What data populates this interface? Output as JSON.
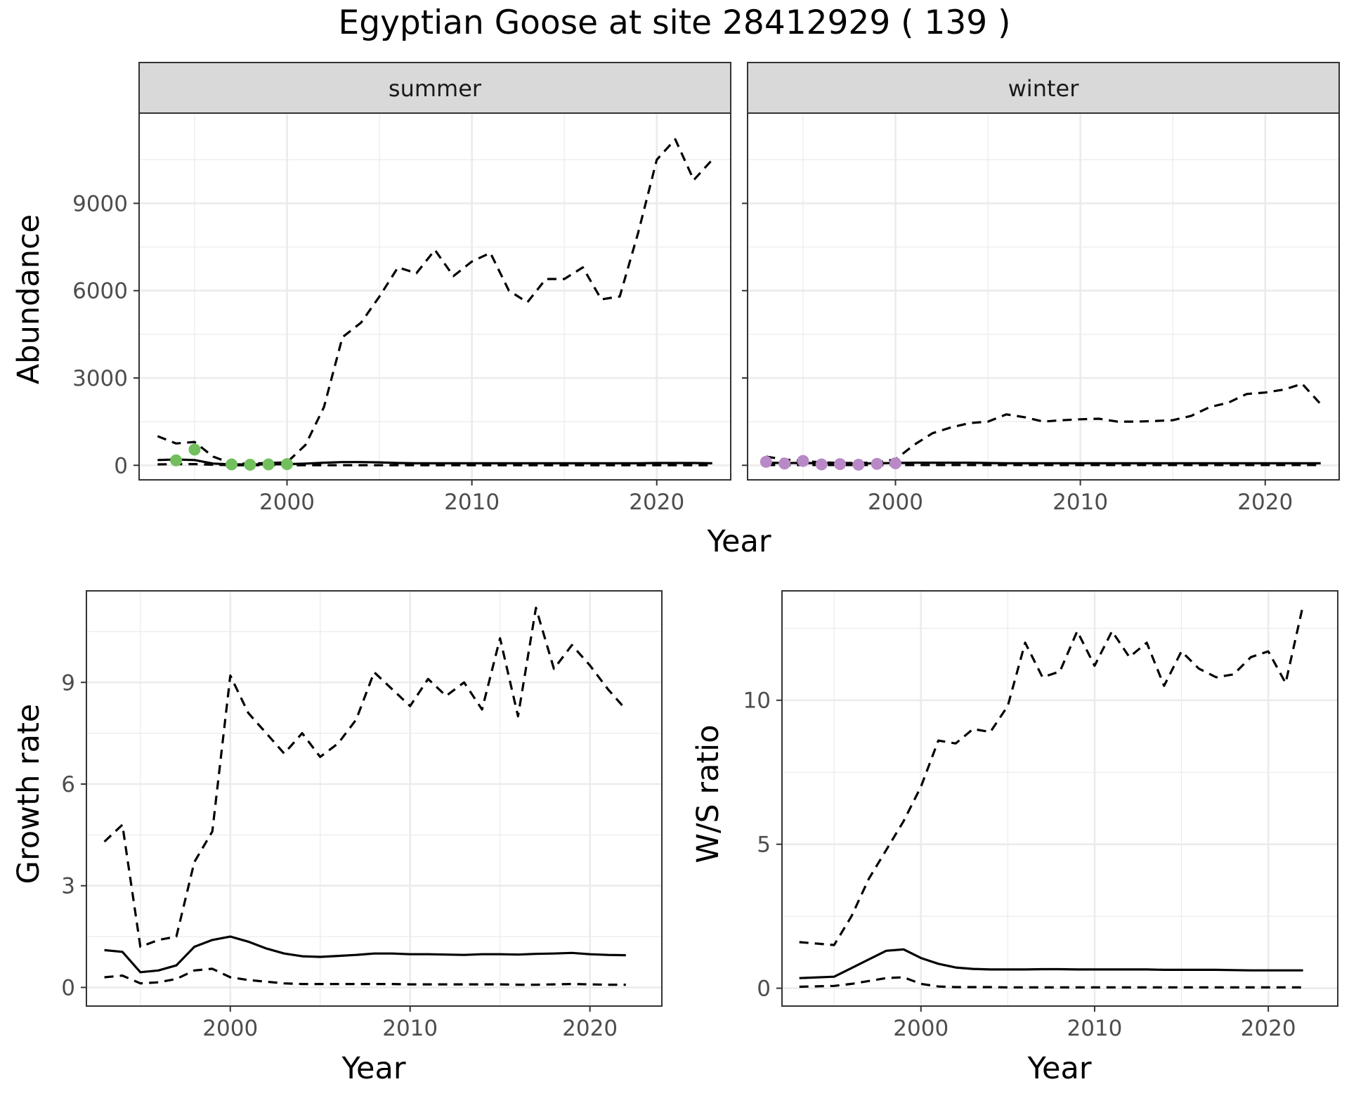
{
  "title": "Egyptian Goose at site 28412929 ( 139 )",
  "colors": {
    "summer_points": "#72bf5d",
    "winter_points": "#b889c6",
    "line": "#000000",
    "strip_bg": "#d9d9d9",
    "grid": "#ebebeb"
  },
  "chart_data": [
    {
      "type": "line",
      "name": "abundance-summer",
      "strip": "summer",
      "xlabel": "Year",
      "ylabel": "Abundance",
      "xlim": [
        1992,
        2024
      ],
      "ylim": [
        -500,
        12100
      ],
      "x_ticks": [
        2000,
        2010,
        2020
      ],
      "y_ticks": [
        0,
        3000,
        6000,
        9000
      ],
      "series": [
        {
          "name": "estimate",
          "style": "solid",
          "x": [
            1993,
            1994,
            1995,
            1996,
            1997,
            1998,
            1999,
            2000,
            2001,
            2002,
            2003,
            2004,
            2005,
            2006,
            2007,
            2008,
            2009,
            2010,
            2011,
            2012,
            2013,
            2014,
            2015,
            2016,
            2017,
            2018,
            2019,
            2020,
            2021,
            2022,
            2023
          ],
          "y": [
            180,
            200,
            180,
            60,
            30,
            30,
            30,
            40,
            60,
            90,
            110,
            110,
            100,
            80,
            70,
            70,
            70,
            70,
            70,
            70,
            70,
            70,
            70,
            70,
            70,
            70,
            70,
            80,
            80,
            80,
            70
          ]
        },
        {
          "name": "upper",
          "style": "dashed",
          "x": [
            1993,
            1994,
            1995,
            1996,
            1997,
            1998,
            1999,
            2000,
            2001,
            2002,
            2003,
            2004,
            2005,
            2006,
            2007,
            2008,
            2009,
            2010,
            2011,
            2012,
            2013,
            2014,
            2015,
            2016,
            2017,
            2018,
            2019,
            2020,
            2021,
            2022,
            2023
          ],
          "y": [
            1000,
            750,
            800,
            300,
            60,
            60,
            80,
            100,
            700,
            2000,
            4400,
            4900,
            5800,
            6800,
            6600,
            7400,
            6500,
            7000,
            7300,
            6000,
            5600,
            6400,
            6400,
            6800,
            5700,
            5800,
            8000,
            10500,
            11200,
            9800,
            10500
          ]
        },
        {
          "name": "lower",
          "style": "dashed",
          "x": [
            1993,
            1994,
            1995,
            1996,
            1997,
            1998,
            1999,
            2000,
            2001,
            2002,
            2003,
            2004,
            2005,
            2006,
            2007,
            2008,
            2009,
            2010,
            2011,
            2012,
            2013,
            2014,
            2015,
            2016,
            2017,
            2018,
            2019,
            2020,
            2021,
            2022,
            2023
          ],
          "y": [
            30,
            40,
            40,
            20,
            5,
            5,
            5,
            5,
            5,
            5,
            5,
            5,
            5,
            5,
            5,
            5,
            5,
            5,
            5,
            5,
            5,
            5,
            5,
            5,
            5,
            5,
            5,
            5,
            5,
            5,
            5
          ]
        },
        {
          "name": "observed",
          "style": "points",
          "color": "#72bf5d",
          "x": [
            1994,
            1995,
            1997,
            1998,
            1999,
            2000
          ],
          "y": [
            170,
            540,
            30,
            20,
            30,
            40
          ]
        }
      ]
    },
    {
      "type": "line",
      "name": "abundance-winter",
      "strip": "winter",
      "xlabel": "Year",
      "ylabel": "",
      "xlim": [
        1992,
        2024
      ],
      "ylim": [
        -500,
        12100
      ],
      "x_ticks": [
        2000,
        2010,
        2020
      ],
      "y_ticks": [
        0,
        3000,
        6000,
        9000
      ],
      "series": [
        {
          "name": "estimate",
          "style": "solid",
          "x": [
            1993,
            1994,
            1995,
            1996,
            1997,
            1998,
            1999,
            2000,
            2001,
            2002,
            2003,
            2004,
            2005,
            2006,
            2007,
            2008,
            2009,
            2010,
            2011,
            2012,
            2013,
            2014,
            2015,
            2016,
            2017,
            2018,
            2019,
            2020,
            2021,
            2022,
            2023
          ],
          "y": [
            90,
            80,
            80,
            70,
            60,
            60,
            70,
            80,
            90,
            90,
            90,
            90,
            80,
            70,
            70,
            70,
            70,
            70,
            70,
            70,
            70,
            70,
            70,
            70,
            70,
            70,
            70,
            70,
            70,
            70,
            70
          ]
        },
        {
          "name": "upper",
          "style": "dashed",
          "x": [
            1993,
            1994,
            1995,
            1996,
            1997,
            1998,
            1999,
            2000,
            2001,
            2002,
            2003,
            2004,
            2005,
            2006,
            2007,
            2008,
            2009,
            2010,
            2011,
            2012,
            2013,
            2014,
            2015,
            2016,
            2017,
            2018,
            2019,
            2020,
            2021,
            2022,
            2023
          ],
          "y": [
            300,
            200,
            150,
            100,
            80,
            80,
            100,
            200,
            700,
            1100,
            1300,
            1450,
            1500,
            1750,
            1650,
            1500,
            1550,
            1580,
            1600,
            1500,
            1500,
            1520,
            1550,
            1700,
            2000,
            2150,
            2450,
            2500,
            2600,
            2800,
            2100
          ]
        },
        {
          "name": "lower",
          "style": "dashed",
          "x": [
            1993,
            1994,
            1995,
            1996,
            1997,
            1998,
            1999,
            2000,
            2001,
            2002,
            2003,
            2004,
            2005,
            2006,
            2007,
            2008,
            2009,
            2010,
            2011,
            2012,
            2013,
            2014,
            2015,
            2016,
            2017,
            2018,
            2019,
            2020,
            2021,
            2022,
            2023
          ],
          "y": [
            10,
            10,
            10,
            10,
            10,
            10,
            10,
            10,
            10,
            10,
            10,
            10,
            10,
            10,
            10,
            10,
            10,
            10,
            10,
            10,
            10,
            10,
            10,
            10,
            10,
            10,
            10,
            10,
            10,
            10,
            10
          ]
        },
        {
          "name": "observed",
          "style": "points",
          "color": "#b889c6",
          "x": [
            1993,
            1994,
            1995,
            1996,
            1997,
            1998,
            1999,
            2000
          ],
          "y": [
            120,
            60,
            150,
            30,
            40,
            20,
            50,
            70
          ]
        }
      ]
    },
    {
      "type": "line",
      "name": "growth-rate",
      "xlabel": "Year",
      "ylabel": "Growth rate",
      "xlim": [
        1992,
        2024
      ],
      "ylim": [
        -0.55,
        11.7
      ],
      "x_ticks": [
        2000,
        2010,
        2020
      ],
      "y_ticks": [
        0,
        3,
        6,
        9
      ],
      "series": [
        {
          "name": "estimate",
          "style": "solid",
          "x": [
            1993,
            1994,
            1995,
            1996,
            1997,
            1998,
            1999,
            2000,
            2001,
            2002,
            2003,
            2004,
            2005,
            2006,
            2007,
            2008,
            2009,
            2010,
            2011,
            2012,
            2013,
            2014,
            2015,
            2016,
            2017,
            2018,
            2019,
            2020,
            2021,
            2022
          ],
          "y": [
            1.1,
            1.05,
            0.45,
            0.5,
            0.65,
            1.2,
            1.4,
            1.5,
            1.35,
            1.15,
            1.0,
            0.92,
            0.9,
            0.93,
            0.96,
            1.0,
            1.0,
            0.98,
            0.98,
            0.97,
            0.96,
            0.98,
            0.98,
            0.97,
            0.99,
            1.0,
            1.02,
            0.98,
            0.96,
            0.95
          ]
        },
        {
          "name": "upper",
          "style": "dashed",
          "x": [
            1993,
            1994,
            1995,
            1996,
            1997,
            1998,
            1999,
            2000,
            2001,
            2002,
            2003,
            2004,
            2005,
            2006,
            2007,
            2008,
            2009,
            2010,
            2011,
            2012,
            2013,
            2014,
            2015,
            2016,
            2017,
            2018,
            2019,
            2020,
            2021,
            2022
          ],
          "y": [
            4.3,
            4.8,
            1.2,
            1.4,
            1.5,
            3.7,
            4.6,
            9.2,
            8.1,
            7.5,
            6.9,
            7.5,
            6.8,
            7.2,
            7.9,
            9.3,
            8.8,
            8.3,
            9.1,
            8.6,
            9.0,
            8.2,
            10.3,
            8.0,
            11.2,
            9.4,
            10.1,
            9.5,
            8.8,
            8.2
          ]
        },
        {
          "name": "lower",
          "style": "dashed",
          "x": [
            1993,
            1994,
            1995,
            1996,
            1997,
            1998,
            1999,
            2000,
            2001,
            2002,
            2003,
            2004,
            2005,
            2006,
            2007,
            2008,
            2009,
            2010,
            2011,
            2012,
            2013,
            2014,
            2015,
            2016,
            2017,
            2018,
            2019,
            2020,
            2021,
            2022
          ],
          "y": [
            0.3,
            0.35,
            0.12,
            0.15,
            0.25,
            0.5,
            0.55,
            0.3,
            0.22,
            0.17,
            0.12,
            0.1,
            0.1,
            0.1,
            0.1,
            0.1,
            0.1,
            0.09,
            0.09,
            0.09,
            0.09,
            0.09,
            0.09,
            0.08,
            0.08,
            0.09,
            0.1,
            0.09,
            0.08,
            0.08
          ]
        }
      ]
    },
    {
      "type": "line",
      "name": "ws-ratio",
      "xlabel": "Year",
      "ylabel": "W/S ratio",
      "xlim": [
        1992,
        2024
      ],
      "ylim": [
        -0.62,
        13.8
      ],
      "x_ticks": [
        2000,
        2010,
        2020
      ],
      "y_ticks": [
        0,
        5,
        10
      ],
      "series": [
        {
          "name": "estimate",
          "style": "solid",
          "x": [
            1993,
            1995,
            1996,
            1997,
            1998,
            1999,
            2000,
            2001,
            2002,
            2003,
            2004,
            2005,
            2006,
            2007,
            2008,
            2009,
            2010,
            2011,
            2012,
            2013,
            2014,
            2015,
            2016,
            2017,
            2018,
            2019,
            2020,
            2021,
            2022
          ],
          "y": [
            0.35,
            0.4,
            0.7,
            1.0,
            1.3,
            1.35,
            1.05,
            0.85,
            0.72,
            0.67,
            0.65,
            0.65,
            0.65,
            0.66,
            0.66,
            0.65,
            0.65,
            0.65,
            0.65,
            0.65,
            0.64,
            0.64,
            0.64,
            0.64,
            0.63,
            0.62,
            0.62,
            0.62,
            0.62
          ]
        },
        {
          "name": "upper",
          "style": "dashed",
          "x": [
            1993,
            1995,
            1996,
            1997,
            1998,
            1999,
            2000,
            2001,
            2002,
            2003,
            2004,
            2005,
            2006,
            2007,
            2008,
            2009,
            2010,
            2011,
            2012,
            2013,
            2014,
            2015,
            2016,
            2017,
            2018,
            2019,
            2020,
            2021,
            2022
          ],
          "y": [
            1.6,
            1.5,
            2.5,
            3.8,
            4.8,
            5.8,
            7.0,
            8.6,
            8.5,
            9.0,
            8.9,
            9.8,
            12.0,
            10.8,
            11.0,
            12.4,
            11.2,
            12.4,
            11.5,
            12.0,
            10.5,
            11.7,
            11.1,
            10.8,
            10.9,
            11.5,
            11.7,
            10.6,
            13.3
          ]
        },
        {
          "name": "lower",
          "style": "dashed",
          "x": [
            1993,
            1995,
            1996,
            1997,
            1998,
            1999,
            2000,
            2001,
            2002,
            2003,
            2004,
            2005,
            2006,
            2007,
            2008,
            2009,
            2010,
            2011,
            2012,
            2013,
            2014,
            2015,
            2016,
            2017,
            2018,
            2019,
            2020,
            2021,
            2022
          ],
          "y": [
            0.05,
            0.08,
            0.15,
            0.25,
            0.35,
            0.38,
            0.15,
            0.06,
            0.04,
            0.04,
            0.04,
            0.03,
            0.03,
            0.03,
            0.03,
            0.03,
            0.03,
            0.03,
            0.03,
            0.03,
            0.03,
            0.03,
            0.03,
            0.03,
            0.03,
            0.03,
            0.03,
            0.03,
            0.03
          ]
        }
      ]
    }
  ]
}
